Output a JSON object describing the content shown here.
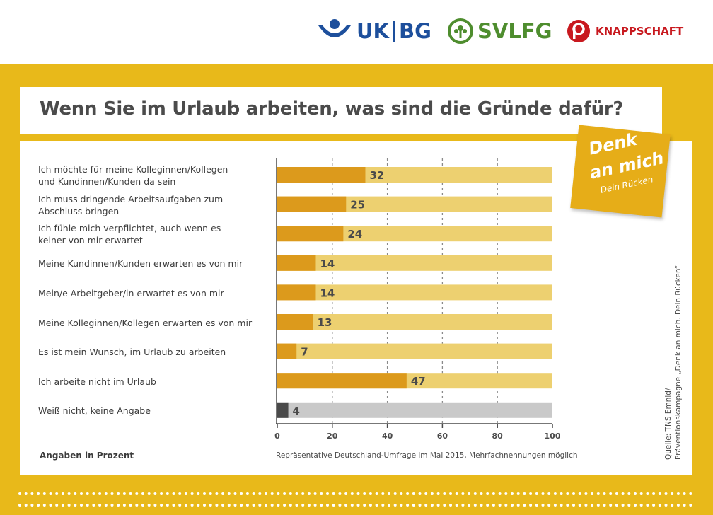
{
  "header": {
    "logos": [
      {
        "name": "UK",
        "name2": "BG"
      },
      {
        "name": "SVLFG"
      },
      {
        "name": "KNAPPSCHAFT"
      }
    ]
  },
  "title": "Wenn Sie im Urlaub arbeiten, was sind die Gründe dafür?",
  "sticky_note": {
    "line1": "Denk",
    "line2": "an mich",
    "line3": "Dein Rücken"
  },
  "footnote_left": "Angaben in Prozent",
  "footnote_center": "Repräsentative Deutschland-Umfrage im Mai 2015, Mehrfachnennungen möglich",
  "source": {
    "line1": "Quelle: TNS Emnid/",
    "line2": "Präventionskampagne „Denk an mich. Dein Rücken“"
  },
  "colors": {
    "page_background": "#e8b91a",
    "bar_fill": "#dc9a1c",
    "bar_track": "#edd070",
    "bar_fill_neutral": "#4a4a4a",
    "bar_track_neutral": "#c9c9c9",
    "ukbg_blue": "#1d4f9c",
    "svlfg_green": "#4e8d2e",
    "knappschaft_red": "#c8191f"
  },
  "chart_data": {
    "type": "bar",
    "orientation": "horizontal",
    "categories": [
      [
        "Ich möchte für meine Kolleginnen/Kollegen",
        "und Kundinnen/Kunden da sein"
      ],
      [
        "Ich muss dringende Arbeitsaufgaben zum",
        "Abschluss bringen"
      ],
      [
        "Ich fühle mich verpflichtet, auch wenn es",
        "keiner von mir erwartet"
      ],
      [
        "Meine Kundinnen/Kunden erwarten es von mir"
      ],
      [
        "Mein/e Arbeitgeber/in erwartet es von mir"
      ],
      [
        "Meine Kolleginnen/Kollegen erwarten es von mir"
      ],
      [
        "Es ist mein Wunsch, im Urlaub zu arbeiten"
      ],
      [
        "Ich arbeite nicht im Urlaub"
      ],
      [
        "Weiß nicht, keine Angabe"
      ]
    ],
    "values": [
      32,
      25,
      24,
      14,
      14,
      13,
      7,
      47,
      4
    ],
    "neutral_index": 8,
    "xlim": [
      0,
      100
    ],
    "xticks": [
      0,
      20,
      40,
      60,
      80,
      100
    ],
    "grid": "dotted vertical at 20, 40, 60, 80"
  }
}
